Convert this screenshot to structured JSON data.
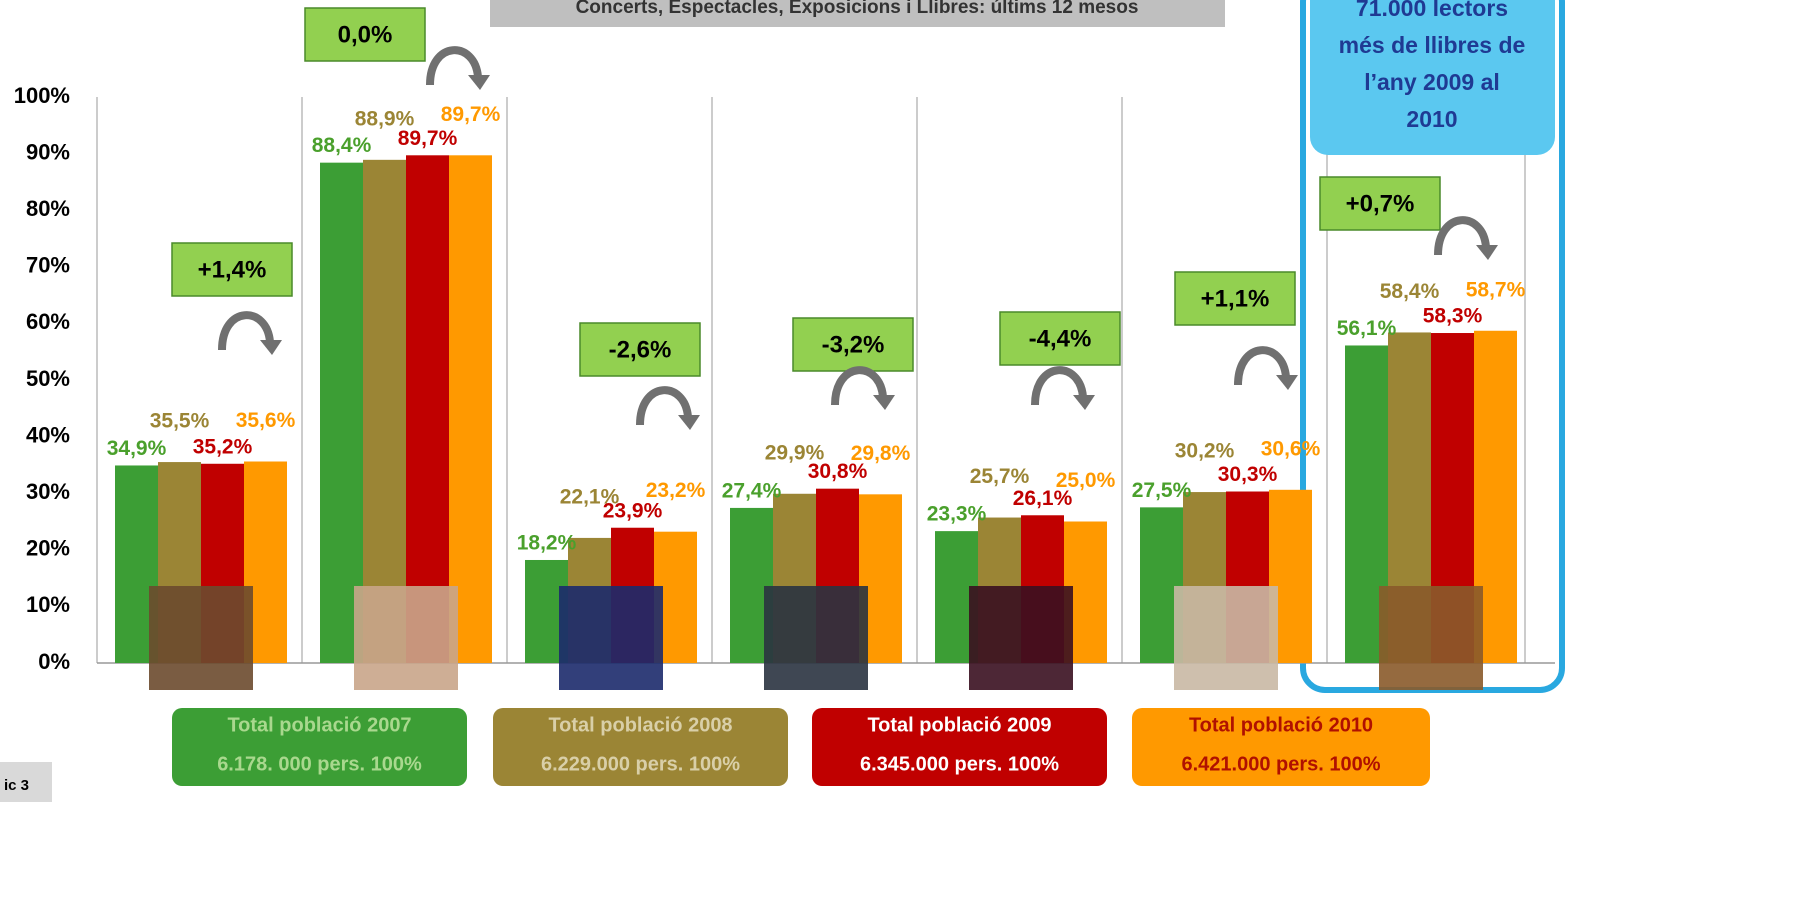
{
  "chart_data": {
    "type": "bar",
    "title": "Concerts, Espectacles, Exposicions i Llibres: últims 12 mesos",
    "categories": [
      null,
      null,
      null,
      null,
      null,
      null,
      null
    ],
    "series": [
      {
        "name": "Total població 2007",
        "note": "6.178. 000 pers. 100%",
        "color": "#3c9e35",
        "values": [
          34.9,
          88.4,
          18.2,
          27.4,
          23.3,
          27.5,
          56.1
        ],
        "value_labels": [
          "34,9%",
          "88,4%",
          "18,2%",
          "27,4%",
          "23,3%",
          "27,5%",
          "56,1%"
        ]
      },
      {
        "name": "Total població 2008",
        "note": "6.229.000 pers.  100%",
        "color": "#9b8535",
        "values": [
          35.5,
          88.9,
          22.1,
          29.9,
          25.7,
          30.2,
          58.4
        ],
        "value_labels": [
          "35,5%",
          "88,9%",
          "22,1%",
          "29,9%",
          "25,7%",
          "30,2%",
          "58,4%"
        ]
      },
      {
        "name": "Total població 2009",
        "note": "6.345.000 pers.  100%",
        "color": "#c00000",
        "values": [
          35.2,
          89.7,
          23.9,
          30.8,
          26.1,
          30.3,
          58.3
        ],
        "value_labels": [
          "35,2%",
          "89,7%",
          "23,9%",
          "30,8%",
          "26,1%",
          "30,3%",
          "58,3%"
        ]
      },
      {
        "name": "Total població 2010",
        "note": "6.421.000 pers.  100%",
        "color": "#ff9900",
        "values": [
          35.6,
          89.7,
          23.2,
          29.8,
          25.0,
          30.6,
          58.7
        ],
        "value_labels": [
          "35,6%",
          "89,7%",
          "23,2%",
          "29,8%",
          "25,0%",
          "30,6%",
          "58,7%"
        ]
      }
    ],
    "changes": [
      "+1,4%",
      "0,0%",
      "-2,6%",
      "-3,2%",
      "-4,4%",
      "+1,1%",
      "+0,7%"
    ],
    "callout": "71.000 lectors més de llibres de l’any 2009 al 2010",
    "footer": "ic 3",
    "ylim": [
      0,
      100
    ],
    "yticks": [
      {
        "value": 0,
        "label": "0%"
      },
      {
        "value": 10,
        "label": "10%"
      },
      {
        "value": 20,
        "label": "20%"
      },
      {
        "value": 30,
        "label": "30%"
      },
      {
        "value": 40,
        "label": "40%"
      },
      {
        "value": 50,
        "label": "50%"
      },
      {
        "value": 60,
        "label": "60%"
      },
      {
        "value": 70,
        "label": "70%"
      },
      {
        "value": 80,
        "label": "80%"
      },
      {
        "value": 90,
        "label": "90%"
      },
      {
        "value": 100,
        "label": "100%"
      }
    ],
    "grid": true
  }
}
